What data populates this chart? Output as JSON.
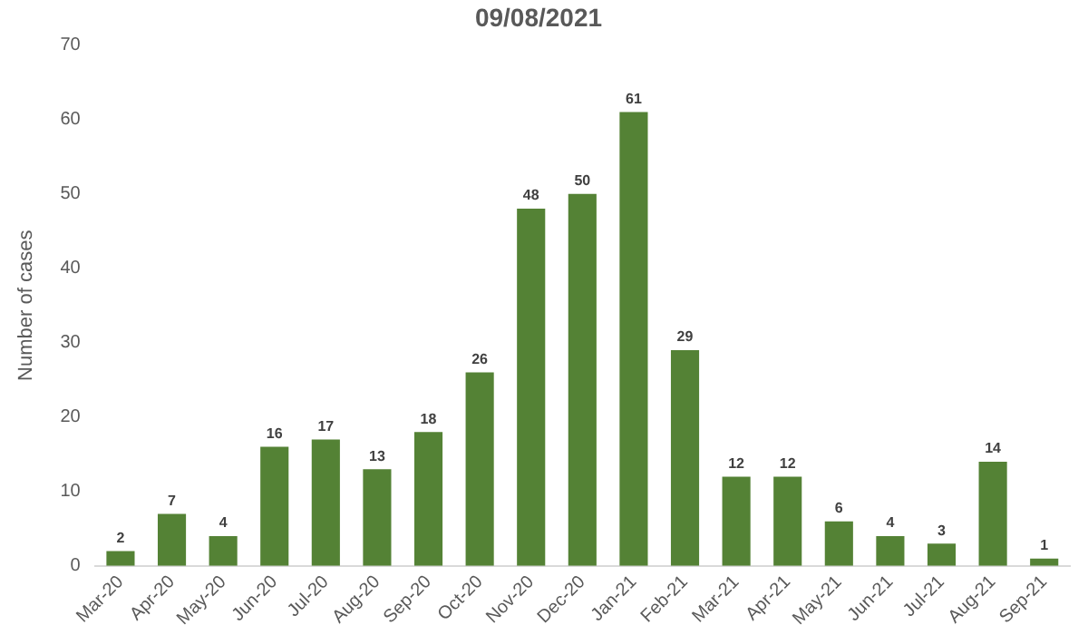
{
  "chart_data": {
    "type": "bar",
    "title": "09/08/2021",
    "ylabel": "Number of cases",
    "categories": [
      "Mar-20",
      "Apr-20",
      "May-20",
      "Jun-20",
      "Jul-20",
      "Aug-20",
      "Sep-20",
      "Oct-20",
      "Nov-20",
      "Dec-20",
      "Jan-21",
      "Feb-21",
      "Mar-21",
      "Apr-21",
      "May-21",
      "Jun-21",
      "Jul-21",
      "Aug-21",
      "Sep-21"
    ],
    "values": [
      2,
      7,
      4,
      16,
      17,
      13,
      18,
      26,
      48,
      50,
      61,
      29,
      12,
      12,
      6,
      4,
      3,
      14,
      1
    ],
    "color": "#548235",
    "ylim": [
      0,
      70
    ],
    "yticks": [
      0,
      10,
      20,
      30,
      40,
      50,
      60,
      70
    ],
    "grid": false,
    "data_labels": true
  }
}
